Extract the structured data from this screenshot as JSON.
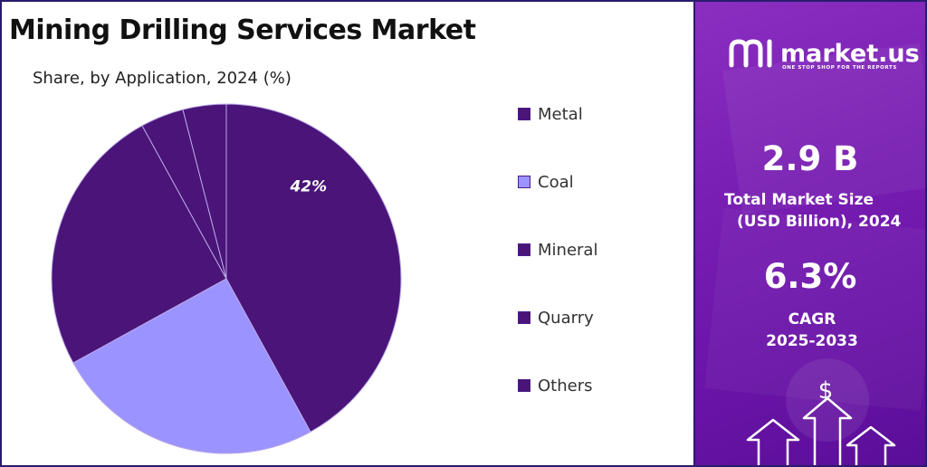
{
  "header": {
    "title": "Mining Drilling Services Market",
    "subtitle": "Share, by Application, 2024 (%)"
  },
  "chart_data": {
    "type": "pie",
    "categories": [
      "Metal",
      "Coal",
      "Mineral",
      "Quarry",
      "Others"
    ],
    "values": [
      42,
      25,
      25,
      4,
      4
    ],
    "colors": [
      "#4a1478",
      "#9b93ff",
      "#4a1478",
      "#4a1478",
      "#4a1478"
    ],
    "data_labels": [
      "42%",
      "",
      "",
      "",
      ""
    ],
    "legend_position": "right"
  },
  "side_panel": {
    "brand_name": "market.us",
    "brand_tagline": "ONE STOP SHOP FOR THE REPORTS",
    "market_size_value": "2.9 B",
    "market_size_label_line1": "Total Market Size",
    "market_size_label_line2": "(USD Billion), 2024",
    "cagr_value": "6.3%",
    "cagr_label_line1": "CAGR",
    "cagr_label_line2": "2025-2033",
    "dollar_icon": "dollar-sign-icon",
    "arrow_icon": "up-arrow-icon"
  }
}
